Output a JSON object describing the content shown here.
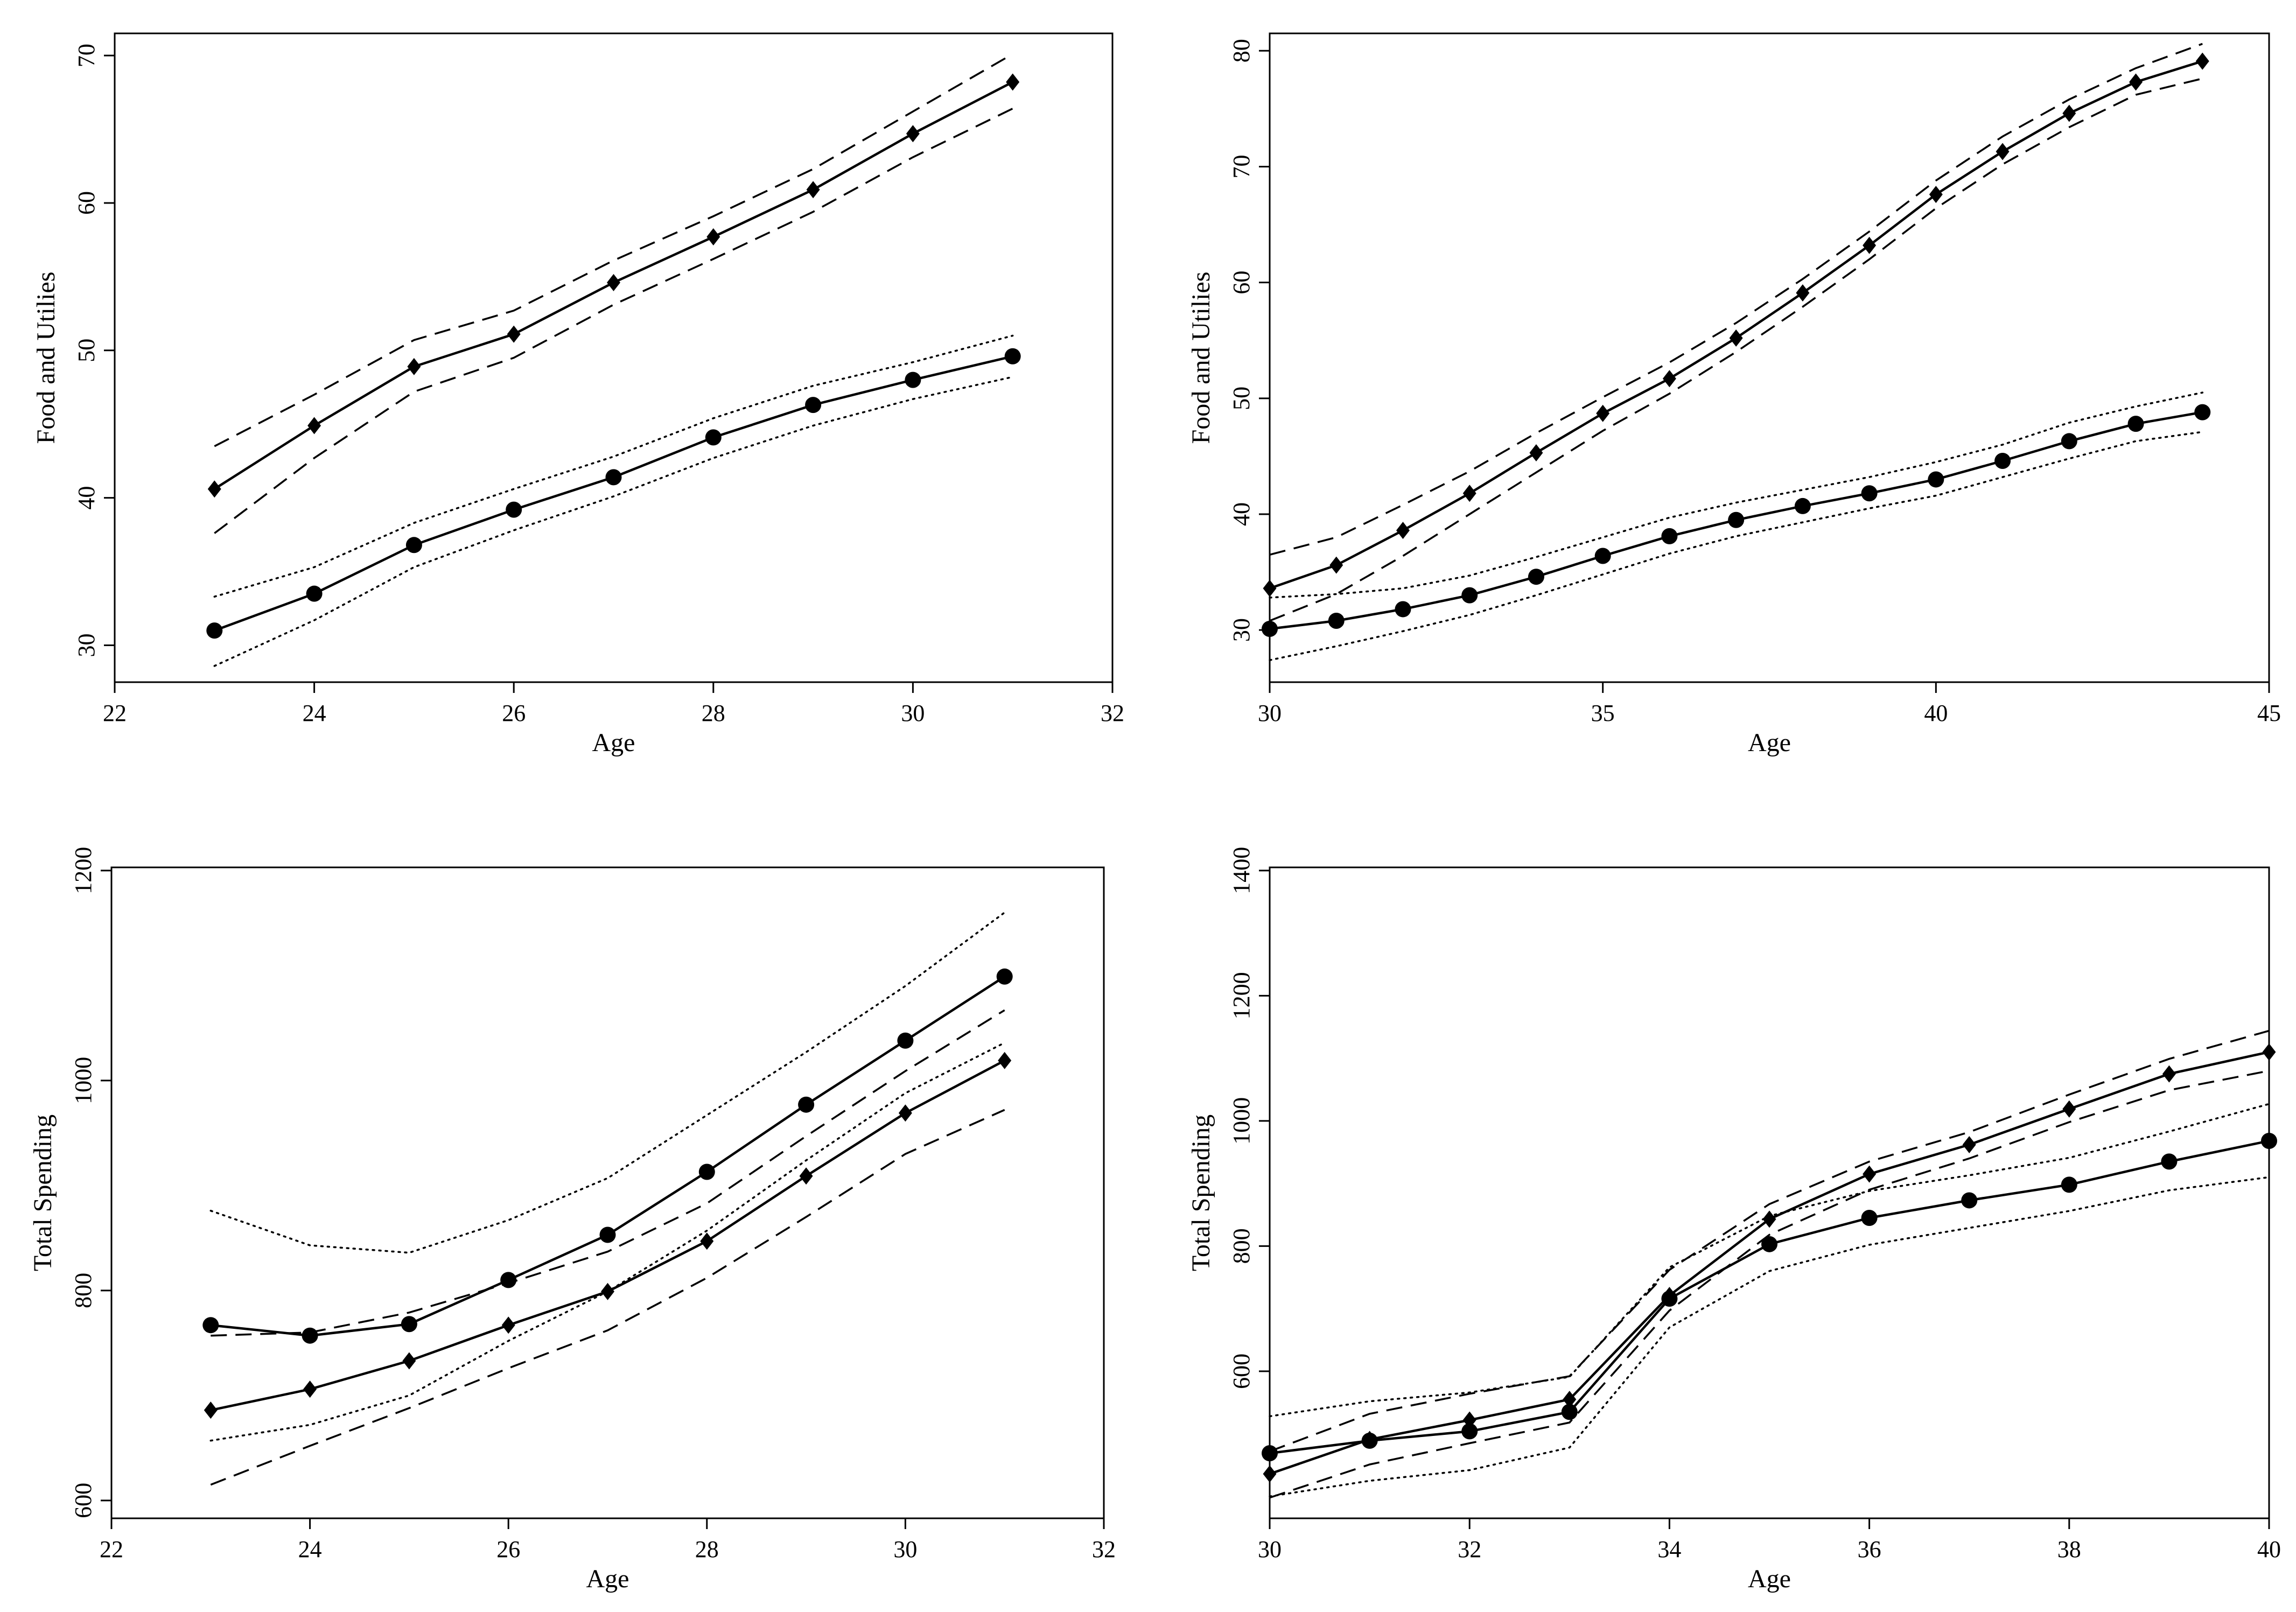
{
  "chart_data": [
    {
      "type": "line",
      "xlabel": "Age",
      "ylabel": "Food and Utilies",
      "xlim": [
        22,
        32
      ],
      "ylim": [
        27.5,
        71.5
      ],
      "xticks": [
        22,
        24,
        26,
        28,
        30,
        32
      ],
      "yticks": [
        30,
        40,
        50,
        60,
        70
      ],
      "x": [
        23,
        24,
        25,
        26,
        27,
        28,
        29,
        30,
        31
      ],
      "series": [
        {
          "marker": "circle",
          "values": [
            31.0,
            33.5,
            36.8,
            39.2,
            41.4,
            44.1,
            46.3,
            48.0,
            49.6
          ],
          "band_style": "dotted",
          "band_upper": [
            33.3,
            35.3,
            38.3,
            40.6,
            42.8,
            45.4,
            47.6,
            49.2,
            51.0
          ],
          "band_lower": [
            28.6,
            31.7,
            35.3,
            37.8,
            40.1,
            42.7,
            44.9,
            46.7,
            48.2
          ]
        },
        {
          "marker": "diamond",
          "values": [
            40.6,
            44.9,
            48.9,
            51.1,
            54.6,
            57.7,
            60.9,
            64.7,
            68.2
          ],
          "band_style": "dashed",
          "band_upper": [
            43.5,
            47.0,
            50.7,
            52.7,
            56.1,
            59.1,
            62.3,
            66.2,
            70.1
          ],
          "band_lower": [
            37.6,
            42.7,
            47.2,
            49.5,
            53.1,
            56.2,
            59.4,
            63.1,
            66.4
          ]
        }
      ]
    },
    {
      "type": "line",
      "xlabel": "Age",
      "ylabel": "Food and Utilies",
      "xlim": [
        30,
        45
      ],
      "ylim": [
        25.5,
        81.5
      ],
      "xticks": [
        30,
        35,
        40,
        45
      ],
      "yticks": [
        30,
        40,
        50,
        60,
        70,
        80
      ],
      "x": [
        30,
        31,
        32,
        33,
        34,
        35,
        36,
        37,
        38,
        39,
        40,
        41,
        42,
        43,
        44
      ],
      "series": [
        {
          "marker": "circle",
          "values": [
            30.1,
            30.8,
            31.8,
            33.0,
            34.6,
            36.4,
            38.1,
            39.5,
            40.7,
            41.8,
            43.0,
            44.6,
            46.3,
            47.8,
            48.8
          ],
          "band_style": "dotted",
          "band_upper": [
            32.8,
            33.1,
            33.6,
            34.7,
            36.3,
            38.0,
            39.7,
            41.0,
            42.1,
            43.2,
            44.5,
            46.0,
            47.9,
            49.3,
            50.5
          ],
          "band_lower": [
            27.4,
            28.6,
            29.9,
            31.3,
            33.0,
            34.8,
            36.6,
            38.1,
            39.3,
            40.5,
            41.6,
            43.2,
            44.8,
            46.3,
            47.1
          ]
        },
        {
          "marker": "diamond",
          "values": [
            33.6,
            35.6,
            38.6,
            41.8,
            45.3,
            48.7,
            51.7,
            55.2,
            59.1,
            63.2,
            67.6,
            71.3,
            74.6,
            77.3,
            79.1
          ],
          "band_style": "dashed",
          "band_upper": [
            36.5,
            38.0,
            40.8,
            43.7,
            47.0,
            50.1,
            53.1,
            56.5,
            60.3,
            64.4,
            68.8,
            72.6,
            75.8,
            78.5,
            80.6
          ],
          "band_lower": [
            30.8,
            33.1,
            36.4,
            40.0,
            43.6,
            47.2,
            50.4,
            54.0,
            57.9,
            62.0,
            66.4,
            70.2,
            73.4,
            76.2,
            77.6
          ]
        }
      ]
    },
    {
      "type": "line",
      "xlabel": "Age",
      "ylabel": "Total Spending",
      "xlim": [
        22,
        32
      ],
      "ylim": [
        583,
        1203
      ],
      "xticks": [
        22,
        24,
        26,
        28,
        30,
        32
      ],
      "yticks": [
        600,
        800,
        1000,
        1200
      ],
      "x": [
        23,
        24,
        25,
        26,
        27,
        28,
        29,
        30,
        31
      ],
      "series": [
        {
          "marker": "circle",
          "values": [
            767,
            757,
            768,
            810,
            853,
            913,
            977,
            1038,
            1099
          ],
          "band_style": "dotted",
          "band_upper": [
            876,
            843,
            836,
            867,
            907,
            967,
            1027,
            1090,
            1160
          ],
          "band_lower": [
            657,
            672,
            700,
            752,
            799,
            857,
            924,
            988,
            1036
          ]
        },
        {
          "marker": "diamond",
          "values": [
            686,
            706,
            733,
            767,
            799,
            847,
            909,
            969,
            1019
          ],
          "band_style": "dashed",
          "band_upper": [
            757,
            760,
            779,
            807,
            837,
            883,
            947,
            1009,
            1067
          ],
          "band_lower": [
            615,
            652,
            688,
            726,
            762,
            812,
            870,
            930,
            972
          ]
        }
      ]
    },
    {
      "type": "line",
      "xlabel": "Age",
      "ylabel": "Total Spending",
      "xlim": [
        30,
        40
      ],
      "ylim": [
        365,
        1405
      ],
      "xticks": [
        30,
        32,
        34,
        36,
        38,
        40
      ],
      "yticks": [
        600,
        800,
        1000,
        1200,
        1400
      ],
      "x": [
        30,
        31,
        32,
        33,
        34,
        35,
        36,
        37,
        38,
        39,
        40
      ],
      "series": [
        {
          "marker": "circle",
          "values": [
            469,
            489,
            504,
            535,
            716,
            803,
            845,
            873,
            898,
            935,
            968
          ],
          "band_style": "dotted",
          "band_upper": [
            528,
            552,
            566,
            591,
            766,
            848,
            888,
            913,
            941,
            983,
            1027
          ],
          "band_lower": [
            400,
            425,
            442,
            478,
            670,
            760,
            802,
            829,
            856,
            889,
            910
          ]
        },
        {
          "marker": "diamond",
          "values": [
            436,
            491,
            522,
            555,
            721,
            843,
            915,
            962,
            1019,
            1075,
            1110
          ],
          "band_style": "dashed",
          "band_upper": [
            472,
            532,
            564,
            592,
            762,
            867,
            935,
            982,
            1042,
            1099,
            1144
          ],
          "band_lower": [
            398,
            451,
            485,
            518,
            697,
            818,
            890,
            940,
            998,
            1049,
            1080
          ]
        }
      ]
    }
  ]
}
